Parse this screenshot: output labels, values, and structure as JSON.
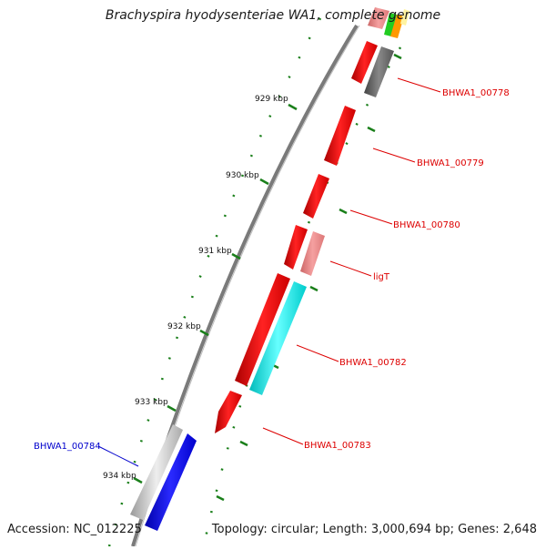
{
  "title": "Brachyspira hyodysenteriae WA1, complete genome",
  "accession": "Accession: NC_012225",
  "topology": "Topology: circular; Length: 3,000,694 bp; Genes: 2,648",
  "scale_labels": [
    "929 kbp",
    "930 kbp",
    "931 kbp",
    "932 kbp",
    "933 kbp",
    "934 kbp"
  ],
  "gene_labels": [
    {
      "text": "BHWA1_00778",
      "color": "#dd0000"
    },
    {
      "text": "BHWA1_00779",
      "color": "#dd0000"
    },
    {
      "text": "BHWA1_00780",
      "color": "#dd0000"
    },
    {
      "text": "ligT",
      "color": "#dd0000"
    },
    {
      "text": "BHWA1_00782",
      "color": "#dd0000"
    },
    {
      "text": "BHWA1_00783",
      "color": "#dd0000"
    },
    {
      "text": "BHWA1_00784",
      "color": "#0000cc"
    }
  ],
  "colors": {
    "backbone": "#888888",
    "tick_dots": "#1a7f1a",
    "gene_red": "#ee1111",
    "gene_pink": "#ee8888",
    "gene_cyan": "#11eeee",
    "gene_gray": "#666666",
    "gene_light_gray": "#bbbbbb",
    "gene_blue": "#0000ee",
    "gene_green": "#22cc22",
    "gene_orange": "#ff9900"
  }
}
